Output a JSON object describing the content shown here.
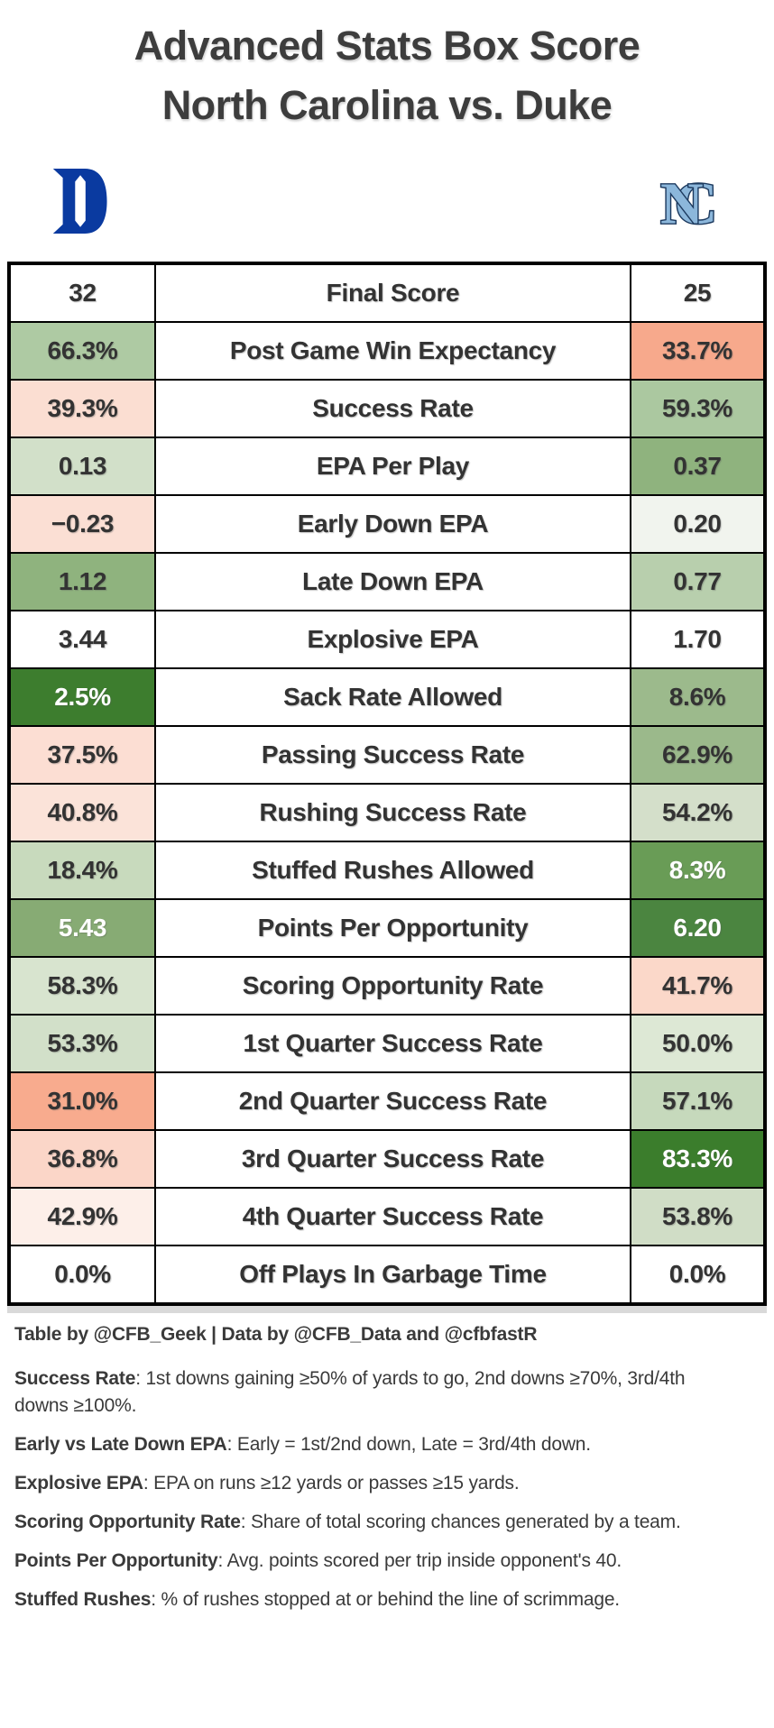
{
  "title": {
    "line1": "Advanced Stats Box Score",
    "line2": "North Carolina vs. Duke"
  },
  "logos": {
    "left_team": "Duke",
    "right_team": "North Carolina"
  },
  "colors": {
    "title_text": "#3d3d3d",
    "cell_text_dark": "#333333",
    "cell_text_light": "#ffffff",
    "table_border": "#000000",
    "table_shadow": "#d9d9d9",
    "duke_blue": "#0a3aa0",
    "unc_carolina_blue": "#8cb7db",
    "unc_outline_navy": "#1d3a5f"
  },
  "chart_data": {
    "type": "table",
    "title": "Advanced Stats Box Score — North Carolina vs. Duke",
    "columns": [
      "Duke value",
      "Metric",
      "North Carolina value"
    ],
    "legend": "Cell shading is a red-to-green diverging scale: green = better, red/salmon = worse",
    "rows": [
      {
        "metric": "Final Score",
        "duke": "32",
        "unc": "25",
        "duke_bg": "#ffffff",
        "unc_bg": "#ffffff",
        "duke_fg": "#333333",
        "unc_fg": "#333333"
      },
      {
        "metric": "Post Game Win Expectancy",
        "duke": "66.3%",
        "unc": "33.7%",
        "duke_bg": "#aecaa3",
        "unc_bg": "#f7a98c",
        "duke_fg": "#333333",
        "unc_fg": "#333333"
      },
      {
        "metric": "Success Rate",
        "duke": "39.3%",
        "unc": "59.3%",
        "duke_bg": "#fbded2",
        "unc_bg": "#abc8a0",
        "duke_fg": "#333333",
        "unc_fg": "#333333"
      },
      {
        "metric": "EPA Per Play",
        "duke": "0.13",
        "unc": "0.37",
        "duke_bg": "#d2e0c9",
        "unc_bg": "#8fb37e",
        "duke_fg": "#333333",
        "unc_fg": "#333333"
      },
      {
        "metric": "Early Down EPA",
        "duke": "−0.23",
        "unc": "0.20",
        "duke_bg": "#fbdfd4",
        "unc_bg": "#f1f4ee",
        "duke_fg": "#333333",
        "unc_fg": "#333333"
      },
      {
        "metric": "Late Down EPA",
        "duke": "1.12",
        "unc": "0.77",
        "duke_bg": "#8fb37e",
        "unc_bg": "#b8cfad",
        "duke_fg": "#333333",
        "unc_fg": "#333333"
      },
      {
        "metric": "Explosive EPA",
        "duke": "3.44",
        "unc": "1.70",
        "duke_bg": "#ffffff",
        "unc_bg": "#ffffff",
        "duke_fg": "#333333",
        "unc_fg": "#333333"
      },
      {
        "metric": "Sack Rate Allowed",
        "duke": "2.5%",
        "unc": "8.6%",
        "duke_bg": "#3d7d2e",
        "unc_bg": "#9cba8c",
        "duke_fg": "#ffffff",
        "unc_fg": "#333333"
      },
      {
        "metric": "Passing Success Rate",
        "duke": "37.5%",
        "unc": "62.9%",
        "duke_bg": "#fcded3",
        "unc_bg": "#9bb98b",
        "duke_fg": "#333333",
        "unc_fg": "#333333"
      },
      {
        "metric": "Rushing Success Rate",
        "duke": "40.8%",
        "unc": "54.2%",
        "duke_bg": "#fbe3d9",
        "unc_bg": "#d4dfca",
        "duke_fg": "#333333",
        "unc_fg": "#333333"
      },
      {
        "metric": "Stuffed Rushes Allowed",
        "duke": "18.4%",
        "unc": "8.3%",
        "duke_bg": "#c8dabd",
        "unc_bg": "#699c56",
        "duke_fg": "#333333",
        "unc_fg": "#ffffff"
      },
      {
        "metric": "Points Per Opportunity",
        "duke": "5.43",
        "unc": "6.20",
        "duke_bg": "#87ab74",
        "unc_bg": "#4b8540",
        "duke_fg": "#ffffff",
        "unc_fg": "#ffffff"
      },
      {
        "metric": "Scoring Opportunity Rate",
        "duke": "58.3%",
        "unc": "41.7%",
        "duke_bg": "#d8e4cf",
        "unc_bg": "#fbd8c9",
        "duke_fg": "#333333",
        "unc_fg": "#333333"
      },
      {
        "metric": "1st Quarter Success Rate",
        "duke": "53.3%",
        "unc": "50.0%",
        "duke_bg": "#d2e0c9",
        "unc_bg": "#dde8d5",
        "duke_fg": "#333333",
        "unc_fg": "#333333"
      },
      {
        "metric": "2nd Quarter Success Rate",
        "duke": "31.0%",
        "unc": "57.1%",
        "duke_bg": "#f8ab8e",
        "unc_bg": "#c6d9bc",
        "duke_fg": "#333333",
        "unc_fg": "#333333"
      },
      {
        "metric": "3rd Quarter Success Rate",
        "duke": "36.8%",
        "unc": "83.3%",
        "duke_bg": "#fbd6c8",
        "unc_bg": "#3b7d2c",
        "duke_fg": "#333333",
        "unc_fg": "#ffffff"
      },
      {
        "metric": "4th Quarter Success Rate",
        "duke": "42.9%",
        "unc": "53.8%",
        "duke_bg": "#fdefe9",
        "unc_bg": "#d0ddc6",
        "duke_fg": "#333333",
        "unc_fg": "#333333"
      },
      {
        "metric": "Off Plays In Garbage Time",
        "duke": "0.0%",
        "unc": "0.0%",
        "duke_bg": "#ffffff",
        "unc_bg": "#ffffff",
        "duke_fg": "#333333",
        "unc_fg": "#333333"
      }
    ]
  },
  "footer": {
    "credit": "Table by @CFB_Geek | Data by @CFB_Data and @cfbfastR",
    "notes": [
      {
        "term": "Success Rate",
        "definition": ": 1st downs gaining ≥50% of yards to go, 2nd downs ≥70%, 3rd/4th downs ≥100%."
      },
      {
        "term": "Early vs Late Down EPA",
        "definition": ": Early = 1st/2nd down, Late = 3rd/4th down."
      },
      {
        "term": "Explosive EPA",
        "definition": ": EPA on runs ≥12 yards or passes ≥15 yards."
      },
      {
        "term": "Scoring Opportunity Rate",
        "definition": ": Share of total scoring chances generated by a team."
      },
      {
        "term": "Points Per Opportunity",
        "definition": ": Avg. points scored per trip inside opponent's 40."
      },
      {
        "term": "Stuffed Rushes",
        "definition": ": % of rushes stopped at or behind the line of scrimmage."
      }
    ]
  }
}
